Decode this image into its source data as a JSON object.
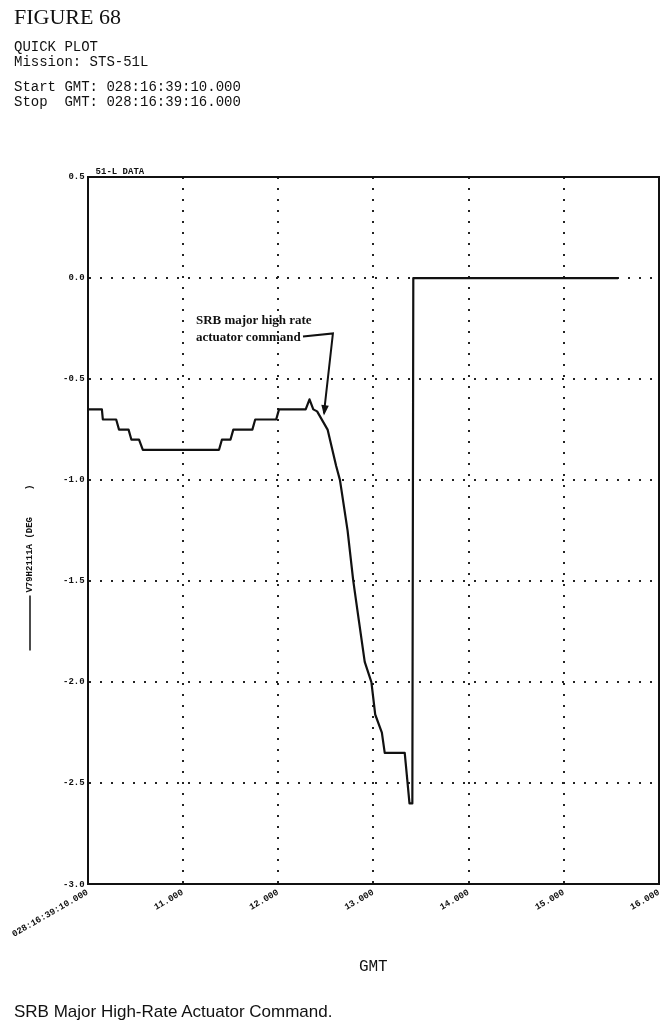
{
  "chart_data": {
    "type": "line",
    "title": "FIGURE 68",
    "subtitle": "QUICK PLOT",
    "annotations": [
      "Mission: STS-51L",
      "Start GMT: 028:16:39:10.000",
      "Stop  GMT: 028:16:39:16.000",
      "51-L DATA",
      {
        "text": "SRB major high rate\nactuator command",
        "x": 12.45,
        "y": -0.7
      },
      "SRB Major High-Rate Actuator Command."
    ],
    "xlabel": "GMT",
    "series": [
      {
        "name": "V79H2111A (DEG     )",
        "color": "#111111",
        "x": [
          10.0,
          10.15,
          10.16,
          10.3,
          10.33,
          10.43,
          10.46,
          10.54,
          10.58,
          11.38,
          11.41,
          11.5,
          11.53,
          11.73,
          11.76,
          11.98,
          12.01,
          12.29,
          12.33,
          12.37,
          12.41,
          12.52,
          12.61,
          12.65,
          12.73,
          12.79,
          12.85,
          12.91,
          12.98,
          13.02,
          13.09,
          13.12,
          13.33,
          13.38,
          13.41,
          13.42,
          15.57
        ],
        "values": [
          -0.65,
          -0.65,
          -0.7,
          -0.7,
          -0.75,
          -0.75,
          -0.8,
          -0.8,
          -0.85,
          -0.85,
          -0.8,
          -0.8,
          -0.75,
          -0.75,
          -0.7,
          -0.7,
          -0.65,
          -0.65,
          -0.6,
          -0.65,
          -0.66,
          -0.75,
          -0.93,
          -1.0,
          -1.25,
          -1.5,
          -1.7,
          -1.9,
          -2.0,
          -2.16,
          -2.25,
          -2.35,
          -2.35,
          -2.6,
          -2.6,
          0.0,
          0.0
        ]
      }
    ],
    "xlim": [
      10,
      16
    ],
    "xticks": [
      {
        "value": 10,
        "label": "028:16:39:10.000"
      },
      {
        "value": 11,
        "label": "11.000"
      },
      {
        "value": 12,
        "label": "12.000"
      },
      {
        "value": 13,
        "label": "13.000"
      },
      {
        "value": 14,
        "label": "14.000"
      },
      {
        "value": 15,
        "label": "15.000"
      },
      {
        "value": 16,
        "label": "16.000"
      }
    ],
    "ylim": [
      -3.0,
      0.5
    ],
    "yticks": [
      0.5,
      {
        "value": 0,
        "label": "0.0"
      },
      -0.5,
      {
        "value": -1,
        "label": "-1.0"
      },
      -1.5,
      {
        "value": -2,
        "label": "-2.0"
      },
      -2.5,
      {
        "value": -3,
        "label": "-3.0"
      }
    ],
    "grid": true,
    "legend": "left",
    "marker": "none",
    "line_style": "solid"
  }
}
